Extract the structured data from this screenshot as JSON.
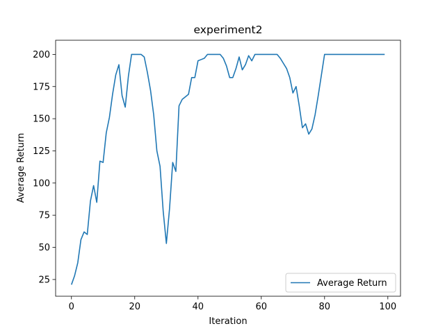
{
  "chart_data": {
    "type": "line",
    "title": "experiment2",
    "xlabel": "Iteration",
    "ylabel": "Average Return",
    "xlim": [
      -5,
      104
    ],
    "ylim": [
      12,
      211
    ],
    "xticks": [
      0,
      20,
      40,
      60,
      80,
      100
    ],
    "yticks": [
      25,
      50,
      75,
      100,
      125,
      150,
      175,
      200
    ],
    "grid": false,
    "legend_placement": "lower-right",
    "colors": {
      "series": "#1f77b4",
      "axes": "#000000",
      "background": "#ffffff"
    },
    "series": [
      {
        "name": "Average Return",
        "x": [
          0,
          1,
          2,
          3,
          4,
          5,
          6,
          7,
          8,
          9,
          10,
          11,
          12,
          13,
          14,
          15,
          16,
          17,
          18,
          19,
          20,
          21,
          22,
          23,
          24,
          25,
          26,
          27,
          28,
          29,
          30,
          31,
          32,
          33,
          34,
          35,
          36,
          37,
          38,
          39,
          40,
          41,
          42,
          43,
          44,
          45,
          46,
          47,
          48,
          49,
          50,
          51,
          52,
          53,
          54,
          55,
          56,
          57,
          58,
          59,
          60,
          61,
          62,
          63,
          64,
          65,
          66,
          67,
          68,
          69,
          70,
          71,
          72,
          73,
          74,
          75,
          76,
          77,
          78,
          79,
          80,
          81,
          82,
          83,
          84,
          85,
          86,
          87,
          88,
          89,
          90,
          91,
          92,
          93,
          94,
          95,
          96,
          97,
          98,
          99
        ],
        "values": [
          21,
          28,
          38,
          56,
          62,
          60,
          86,
          98,
          85,
          117,
          116,
          139,
          151,
          169,
          184,
          192,
          168,
          159,
          183,
          200,
          200,
          200,
          200,
          198,
          186,
          172,
          153,
          125,
          113,
          78,
          53,
          80,
          116,
          109,
          160,
          165,
          167,
          169,
          182,
          182,
          195,
          196,
          197,
          200,
          200,
          200,
          200,
          200,
          197,
          191,
          182,
          182,
          189,
          198,
          188,
          192,
          199,
          195,
          200,
          200,
          200,
          200,
          200,
          200,
          200,
          200,
          197,
          193,
          189,
          182,
          170,
          175,
          160,
          143,
          146,
          138,
          142,
          153,
          168,
          184,
          200,
          200,
          200,
          200,
          200,
          200,
          200,
          200,
          200,
          200,
          200,
          200,
          200,
          200,
          200,
          200,
          200,
          200,
          200,
          200
        ]
      }
    ]
  }
}
